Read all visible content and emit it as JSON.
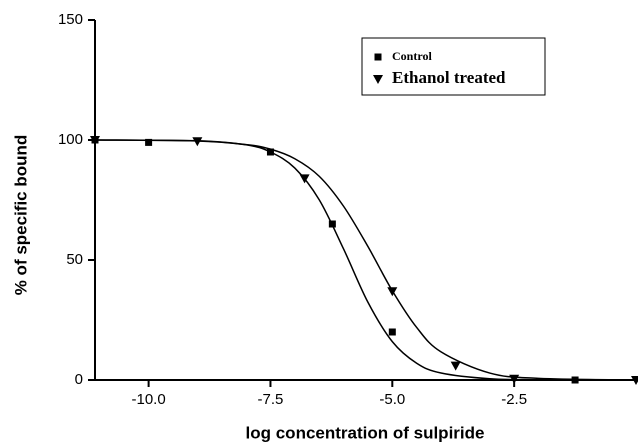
{
  "chart_data": {
    "type": "scatter",
    "xlabel": "log concentration of sulpiride",
    "ylabel": "% of specific bound",
    "xlim": [
      -11.1,
      0
    ],
    "ylim": [
      0,
      150
    ],
    "xticks": [
      {
        "value": -10,
        "label": "-10.0"
      },
      -7.5,
      {
        "value": -5,
        "label": "-5.0"
      },
      -2.5
    ],
    "yticks": [
      0,
      50,
      100,
      150
    ],
    "legend": "upper right",
    "series": [
      {
        "name": "Control",
        "color": "#000000",
        "marker": "square",
        "x": [
          -11.1,
          -10,
          -7.5,
          -6.23,
          -5,
          -1.25
        ],
        "values": [
          100,
          99,
          95,
          65,
          20,
          0
        ],
        "fit_x": [
          -11.1,
          -9,
          -8,
          -7.5,
          -7,
          -6.5,
          -6,
          -5.5,
          -5,
          -4.5,
          -4,
          -3,
          -2,
          0
        ],
        "fit_values": [
          100,
          99.7,
          98,
          95,
          88.3,
          75.1,
          54.6,
          32.4,
          16,
          7,
          2.9,
          0.5,
          0.1,
          0
        ]
      },
      {
        "name": "Ethanol treated",
        "color": "#000000",
        "marker": "triangle-down",
        "x": [
          -11.1,
          -9,
          -6.8,
          -5,
          -3.7,
          -2.5,
          0
        ],
        "values": [
          100,
          99.5,
          84,
          37,
          6,
          0.5,
          0
        ],
        "fit_x": [
          -11.1,
          -9,
          -8,
          -7.5,
          -7,
          -6.5,
          -6,
          -5.5,
          -5,
          -4.5,
          -4,
          -3,
          -2,
          0
        ],
        "fit_values": [
          100,
          99.6,
          98.1,
          96.2,
          92.2,
          84.9,
          72.4,
          55.6,
          37.2,
          21.9,
          11.7,
          2.9,
          0.7,
          0
        ]
      }
    ]
  }
}
